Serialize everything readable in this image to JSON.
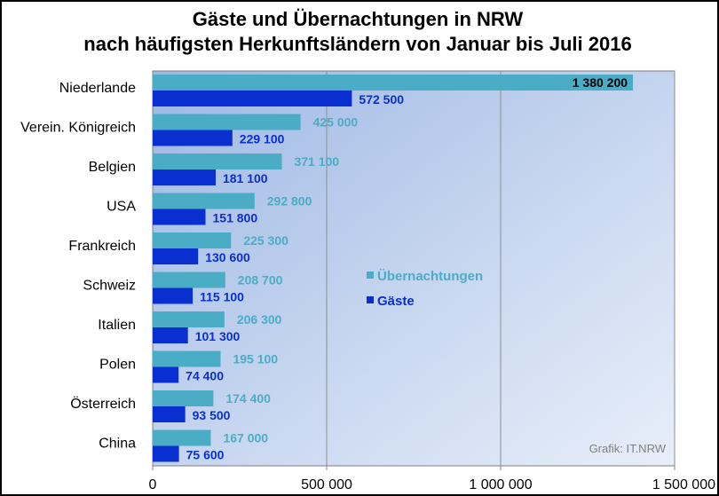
{
  "chart_data": {
    "type": "bar",
    "orientation": "horizontal",
    "title": "Gäste und Übernachtungen in NRW",
    "subtitle": "nach häufigsten Herkunftsländern von Januar bis Juli 2016",
    "categories": [
      "Niederlande",
      "Verein. Königreich",
      "Belgien",
      "USA",
      "Frankreich",
      "Schweiz",
      "Italien",
      "Polen",
      "Österreich",
      "China"
    ],
    "series": [
      {
        "name": "Übernachtungen",
        "color": "#4bacc6",
        "values": [
          1380200,
          425000,
          371100,
          292800,
          225300,
          208700,
          206300,
          195100,
          174400,
          167000
        ],
        "labels": [
          "1 380 200",
          "425 000",
          "371 100",
          "292 800",
          "225 300",
          "208 700",
          "206 300",
          "195 100",
          "174 400",
          "167 000"
        ]
      },
      {
        "name": "Gäste",
        "color": "#0a2fd0",
        "values": [
          572500,
          229100,
          181100,
          151800,
          130600,
          115100,
          101300,
          74400,
          93500,
          75600
        ],
        "labels": [
          "572 500",
          "229 100",
          "181 100",
          "151 800",
          "130 600",
          "115 100",
          "101 300",
          "74 400",
          "93 500",
          "75 600"
        ]
      }
    ],
    "xlim": [
      0,
      1500000
    ],
    "xticks": [
      0,
      500000,
      1000000,
      1500000
    ],
    "xtick_labels": [
      "0",
      "500 000",
      "1 000 000",
      "1 500 000"
    ],
    "grid": true,
    "legend_position": "center-right",
    "credit": "Grafik: IT.NRW"
  }
}
